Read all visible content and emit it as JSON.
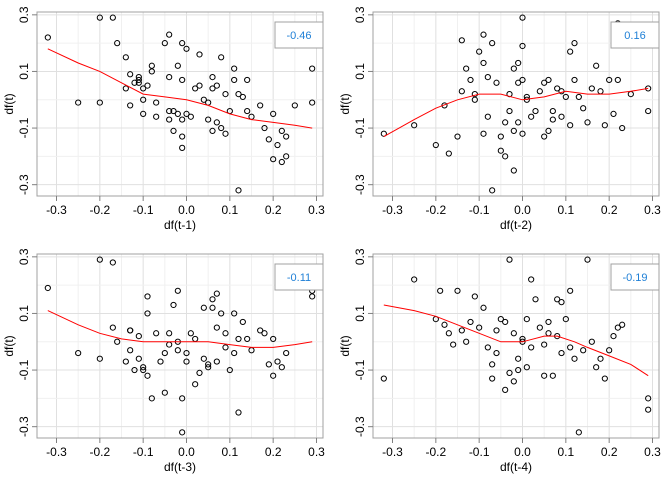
{
  "chart_data": [
    {
      "type": "scatter",
      "xlabel": "df(t-1)",
      "ylabel": "df(t)",
      "xlim": [
        -0.345,
        0.315
      ],
      "ylim": [
        -0.34,
        0.31
      ],
      "xticks": [
        "-0.3",
        "-0.2",
        "-0.1",
        "0.0",
        "0.1",
        "0.2",
        "0.3"
      ],
      "yticks": [
        "-0.3",
        "-0.1",
        "0.1",
        "0.3"
      ],
      "grid": true,
      "annotation": "-0.46",
      "annotation_color": "#1e7fd6",
      "point_color": "#000000",
      "smooth_color": "#ff0000",
      "points": [
        [
          -0.32,
          0.22
        ],
        [
          -0.25,
          -0.01
        ],
        [
          -0.2,
          0.29
        ],
        [
          -0.2,
          -0.01
        ],
        [
          -0.17,
          0.29
        ],
        [
          -0.16,
          0.2
        ],
        [
          -0.14,
          0.15
        ],
        [
          -0.14,
          0.04
        ],
        [
          -0.13,
          0.09
        ],
        [
          -0.13,
          -0.02
        ],
        [
          -0.12,
          0.06
        ],
        [
          -0.11,
          0.08
        ],
        [
          -0.11,
          0.06
        ],
        [
          -0.11,
          0.07
        ],
        [
          -0.1,
          0.04
        ],
        [
          -0.1,
          0.0
        ],
        [
          -0.1,
          -0.05
        ],
        [
          -0.09,
          0.05
        ],
        [
          -0.08,
          0.12
        ],
        [
          -0.08,
          0.1
        ],
        [
          -0.07,
          -0.01
        ],
        [
          -0.07,
          -0.06
        ],
        [
          -0.05,
          0.2
        ],
        [
          -0.04,
          0.23
        ],
        [
          -0.04,
          0.08
        ],
        [
          -0.04,
          -0.04
        ],
        [
          -0.04,
          -0.07
        ],
        [
          -0.03,
          -0.11
        ],
        [
          -0.03,
          -0.04
        ],
        [
          -0.02,
          0.12
        ],
        [
          -0.02,
          -0.05
        ],
        [
          -0.01,
          0.2
        ],
        [
          -0.01,
          0.07
        ],
        [
          -0.01,
          -0.07
        ],
        [
          -0.01,
          -0.13
        ],
        [
          -0.01,
          -0.17
        ],
        [
          0.0,
          0.18
        ],
        [
          0.0,
          -0.05
        ],
        [
          0.01,
          -0.06
        ],
        [
          0.02,
          0.04
        ],
        [
          0.03,
          0.16
        ],
        [
          0.03,
          0.05
        ],
        [
          0.04,
          0.0
        ],
        [
          0.05,
          -0.01
        ],
        [
          0.05,
          -0.07
        ],
        [
          0.06,
          -0.11
        ],
        [
          0.06,
          0.08
        ],
        [
          0.06,
          0.04
        ],
        [
          0.07,
          0.05
        ],
        [
          0.07,
          -0.08
        ],
        [
          0.08,
          0.15
        ],
        [
          0.08,
          -0.1
        ],
        [
          0.09,
          0.02
        ],
        [
          0.09,
          -0.12
        ],
        [
          0.1,
          -0.04
        ],
        [
          0.11,
          0.11
        ],
        [
          0.11,
          0.07
        ],
        [
          0.12,
          0.02
        ],
        [
          0.12,
          -0.32
        ],
        [
          0.13,
          0.01
        ],
        [
          0.14,
          0.07
        ],
        [
          0.14,
          -0.04
        ],
        [
          0.15,
          -0.06
        ],
        [
          0.17,
          -0.02
        ],
        [
          0.18,
          -0.1
        ],
        [
          0.19,
          -0.14
        ],
        [
          0.2,
          -0.21
        ],
        [
          0.2,
          -0.05
        ],
        [
          0.21,
          -0.16
        ],
        [
          0.22,
          -0.11
        ],
        [
          0.22,
          -0.22
        ],
        [
          0.23,
          -0.13
        ],
        [
          0.23,
          -0.2
        ],
        [
          0.25,
          -0.02
        ],
        [
          0.29,
          0.11
        ],
        [
          0.29,
          -0.01
        ]
      ],
      "smooth": [
        [
          -0.32,
          0.18
        ],
        [
          -0.25,
          0.13
        ],
        [
          -0.2,
          0.1
        ],
        [
          -0.15,
          0.06
        ],
        [
          -0.1,
          0.02
        ],
        [
          -0.05,
          0.01
        ],
        [
          0.0,
          0.0
        ],
        [
          0.05,
          -0.02
        ],
        [
          0.1,
          -0.05
        ],
        [
          0.15,
          -0.07
        ],
        [
          0.2,
          -0.08
        ],
        [
          0.25,
          -0.09
        ],
        [
          0.29,
          -0.1
        ]
      ]
    },
    {
      "type": "scatter",
      "xlabel": "df(t-2)",
      "ylabel": "df(t)",
      "xlim": [
        -0.345,
        0.315
      ],
      "ylim": [
        -0.34,
        0.31
      ],
      "xticks": [
        "-0.3",
        "-0.2",
        "-0.1",
        "0.0",
        "0.1",
        "0.2",
        "0.3"
      ],
      "yticks": [
        "-0.3",
        "-0.1",
        "0.1",
        "0.3"
      ],
      "grid": true,
      "annotation": "0.16",
      "annotation_color": "#1e7fd6",
      "point_color": "#000000",
      "smooth_color": "#ff0000",
      "points": [
        [
          -0.32,
          -0.12
        ],
        [
          -0.25,
          -0.09
        ],
        [
          -0.2,
          -0.16
        ],
        [
          -0.18,
          -0.02
        ],
        [
          -0.17,
          -0.19
        ],
        [
          -0.15,
          -0.13
        ],
        [
          -0.14,
          0.21
        ],
        [
          -0.14,
          0.03
        ],
        [
          -0.13,
          0.11
        ],
        [
          -0.12,
          0.07
        ],
        [
          -0.11,
          0.02
        ],
        [
          -0.11,
          0.0
        ],
        [
          -0.1,
          0.17
        ],
        [
          -0.09,
          0.23
        ],
        [
          -0.09,
          -0.12
        ],
        [
          -0.09,
          0.13
        ],
        [
          -0.08,
          0.08
        ],
        [
          -0.08,
          -0.06
        ],
        [
          -0.07,
          -0.32
        ],
        [
          -0.07,
          0.2
        ],
        [
          -0.06,
          0.06
        ],
        [
          -0.05,
          -0.18
        ],
        [
          -0.05,
          -0.13
        ],
        [
          -0.04,
          -0.2
        ],
        [
          -0.04,
          -0.08
        ],
        [
          -0.03,
          0.02
        ],
        [
          -0.03,
          -0.04
        ],
        [
          -0.02,
          0.11
        ],
        [
          -0.02,
          -0.11
        ],
        [
          -0.02,
          -0.25
        ],
        [
          -0.01,
          0.13
        ],
        [
          -0.01,
          0.06
        ],
        [
          -0.01,
          -0.08
        ],
        [
          0.0,
          0.29
        ],
        [
          0.0,
          0.19
        ],
        [
          0.0,
          0.07
        ],
        [
          0.0,
          -0.12
        ],
        [
          0.01,
          0.0
        ],
        [
          0.01,
          0.01
        ],
        [
          0.02,
          -0.06
        ],
        [
          0.03,
          -0.04
        ],
        [
          0.04,
          0.03
        ],
        [
          0.05,
          0.06
        ],
        [
          0.05,
          -0.13
        ],
        [
          0.06,
          -0.11
        ],
        [
          0.06,
          0.07
        ],
        [
          0.07,
          -0.04
        ],
        [
          0.07,
          -0.07
        ],
        [
          0.08,
          0.04
        ],
        [
          0.09,
          0.03
        ],
        [
          0.09,
          -0.06
        ],
        [
          0.1,
          0.01
        ],
        [
          0.11,
          0.17
        ],
        [
          0.11,
          -0.09
        ],
        [
          0.12,
          0.2
        ],
        [
          0.12,
          0.07
        ],
        [
          0.13,
          0.01
        ],
        [
          0.14,
          -0.03
        ],
        [
          0.15,
          -0.08
        ],
        [
          0.16,
          0.04
        ],
        [
          0.17,
          0.12
        ],
        [
          0.18,
          0.03
        ],
        [
          0.19,
          -0.09
        ],
        [
          0.2,
          0.07
        ],
        [
          0.21,
          -0.05
        ],
        [
          0.22,
          0.27
        ],
        [
          0.22,
          0.07
        ],
        [
          0.23,
          -0.1
        ],
        [
          0.25,
          0.02
        ],
        [
          0.29,
          -0.04
        ],
        [
          0.29,
          0.04
        ]
      ],
      "smooth": [
        [
          -0.32,
          -0.13
        ],
        [
          -0.25,
          -0.07
        ],
        [
          -0.2,
          -0.03
        ],
        [
          -0.15,
          0.0
        ],
        [
          -0.1,
          0.02
        ],
        [
          -0.05,
          0.02
        ],
        [
          0.0,
          0.0
        ],
        [
          0.05,
          0.01
        ],
        [
          0.1,
          0.03
        ],
        [
          0.15,
          0.02
        ],
        [
          0.2,
          0.02
        ],
        [
          0.25,
          0.03
        ],
        [
          0.29,
          0.04
        ]
      ]
    },
    {
      "type": "scatter",
      "xlabel": "df(t-3)",
      "ylabel": "df(t)",
      "xlim": [
        -0.345,
        0.315
      ],
      "ylim": [
        -0.34,
        0.31
      ],
      "xticks": [
        "-0.3",
        "-0.2",
        "-0.1",
        "0.0",
        "0.1",
        "0.2",
        "0.3"
      ],
      "yticks": [
        "-0.3",
        "-0.1",
        "0.1",
        "0.3"
      ],
      "grid": true,
      "annotation": "-0.11",
      "annotation_color": "#1e7fd6",
      "point_color": "#000000",
      "smooth_color": "#ff0000",
      "points": [
        [
          -0.32,
          0.19
        ],
        [
          -0.25,
          -0.04
        ],
        [
          -0.2,
          0.29
        ],
        [
          -0.2,
          -0.06
        ],
        [
          -0.17,
          0.28
        ],
        [
          -0.17,
          0.05
        ],
        [
          -0.16,
          0.0
        ],
        [
          -0.14,
          -0.07
        ],
        [
          -0.13,
          -0.03
        ],
        [
          -0.13,
          0.04
        ],
        [
          -0.13,
          0.04
        ],
        [
          -0.12,
          -0.1
        ],
        [
          -0.11,
          0.02
        ],
        [
          -0.11,
          -0.06
        ],
        [
          -0.1,
          -0.09
        ],
        [
          -0.1,
          -0.1
        ],
        [
          -0.09,
          0.1
        ],
        [
          -0.09,
          -0.12
        ],
        [
          -0.09,
          0.16
        ],
        [
          -0.08,
          -0.2
        ],
        [
          -0.07,
          0.03
        ],
        [
          -0.06,
          -0.07
        ],
        [
          -0.05,
          -0.18
        ],
        [
          -0.05,
          -0.04
        ],
        [
          -0.04,
          0.03
        ],
        [
          -0.04,
          -0.01
        ],
        [
          -0.03,
          0.13
        ],
        [
          -0.02,
          0.18
        ],
        [
          -0.02,
          0.0
        ],
        [
          -0.02,
          -0.03
        ],
        [
          -0.01,
          -0.2
        ],
        [
          -0.01,
          -0.32
        ],
        [
          0.0,
          -0.04
        ],
        [
          0.0,
          -0.07
        ],
        [
          0.01,
          0.03
        ],
        [
          0.02,
          -0.15
        ],
        [
          0.02,
          0.01
        ],
        [
          0.03,
          -0.11
        ],
        [
          0.04,
          0.12
        ],
        [
          0.04,
          -0.06
        ],
        [
          0.05,
          -0.09
        ],
        [
          0.05,
          -0.08
        ],
        [
          0.06,
          0.15
        ],
        [
          0.06,
          0.12
        ],
        [
          0.07,
          0.17
        ],
        [
          0.07,
          0.05
        ],
        [
          0.07,
          -0.07
        ],
        [
          0.08,
          0.1
        ],
        [
          0.09,
          -0.02
        ],
        [
          0.09,
          0.03
        ],
        [
          0.1,
          -0.1
        ],
        [
          0.11,
          0.1
        ],
        [
          0.11,
          -0.04
        ],
        [
          0.12,
          -0.25
        ],
        [
          0.12,
          0.01
        ],
        [
          0.13,
          0.07
        ],
        [
          0.14,
          0.01
        ],
        [
          0.15,
          -0.03
        ],
        [
          0.17,
          0.04
        ],
        [
          0.18,
          0.03
        ],
        [
          0.19,
          -0.08
        ],
        [
          0.2,
          0.01
        ],
        [
          0.2,
          -0.12
        ],
        [
          0.21,
          -0.07
        ],
        [
          0.22,
          -0.09
        ],
        [
          0.23,
          -0.04
        ],
        [
          0.29,
          0.16
        ],
        [
          0.29,
          0.18
        ]
      ],
      "smooth": [
        [
          -0.32,
          0.11
        ],
        [
          -0.25,
          0.06
        ],
        [
          -0.2,
          0.03
        ],
        [
          -0.15,
          0.01
        ],
        [
          -0.1,
          0.0
        ],
        [
          -0.05,
          0.0
        ],
        [
          0.0,
          0.0
        ],
        [
          0.05,
          0.0
        ],
        [
          0.1,
          -0.01
        ],
        [
          0.15,
          -0.02
        ],
        [
          0.2,
          -0.02
        ],
        [
          0.25,
          -0.01
        ],
        [
          0.29,
          0.0
        ]
      ]
    },
    {
      "type": "scatter",
      "xlabel": "df(t-4)",
      "ylabel": "df(t)",
      "xlim": [
        -0.345,
        0.315
      ],
      "ylim": [
        -0.34,
        0.31
      ],
      "xticks": [
        "-0.3",
        "-0.2",
        "-0.1",
        "0.0",
        "0.1",
        "0.2",
        "0.3"
      ],
      "yticks": [
        "-0.3",
        "-0.1",
        "0.1",
        "0.3"
      ],
      "grid": true,
      "annotation": "-0.19",
      "annotation_color": "#1e7fd6",
      "point_color": "#000000",
      "smooth_color": "#ff0000",
      "points": [
        [
          -0.32,
          -0.13
        ],
        [
          -0.25,
          0.22
        ],
        [
          -0.2,
          0.08
        ],
        [
          -0.19,
          0.18
        ],
        [
          -0.18,
          0.06
        ],
        [
          -0.17,
          0.03
        ],
        [
          -0.16,
          -0.01
        ],
        [
          -0.15,
          0.18
        ],
        [
          -0.14,
          0.04
        ],
        [
          -0.13,
          0.0
        ],
        [
          -0.12,
          0.07
        ],
        [
          -0.11,
          0.16
        ],
        [
          -0.1,
          0.05
        ],
        [
          -0.09,
          0.12
        ],
        [
          -0.08,
          -0.02
        ],
        [
          -0.07,
          -0.13
        ],
        [
          -0.07,
          -0.08
        ],
        [
          -0.06,
          0.04
        ],
        [
          -0.06,
          -0.04
        ],
        [
          -0.05,
          0.08
        ],
        [
          -0.04,
          0.07
        ],
        [
          -0.04,
          -0.17
        ],
        [
          -0.03,
          0.29
        ],
        [
          -0.03,
          -0.11
        ],
        [
          -0.02,
          0.03
        ],
        [
          -0.02,
          -0.14
        ],
        [
          -0.01,
          -0.1
        ],
        [
          -0.01,
          -0.06
        ],
        [
          0.0,
          0.0
        ],
        [
          0.0,
          0.01
        ],
        [
          0.01,
          0.08
        ],
        [
          0.01,
          -0.09
        ],
        [
          0.02,
          0.22
        ],
        [
          0.02,
          -0.02
        ],
        [
          0.03,
          0.15
        ],
        [
          0.04,
          0.05
        ],
        [
          0.05,
          -0.01
        ],
        [
          0.05,
          -0.12
        ],
        [
          0.06,
          0.07
        ],
        [
          0.06,
          0.03
        ],
        [
          0.07,
          -0.12
        ],
        [
          0.08,
          0.02
        ],
        [
          0.08,
          0.15
        ],
        [
          0.09,
          0.14
        ],
        [
          0.09,
          -0.04
        ],
        [
          0.1,
          0.08
        ],
        [
          0.11,
          0.18
        ],
        [
          0.11,
          -0.02
        ],
        [
          0.12,
          -0.06
        ],
        [
          0.13,
          -0.32
        ],
        [
          0.14,
          -0.03
        ],
        [
          0.15,
          0.29
        ],
        [
          0.16,
          0.0
        ],
        [
          0.17,
          -0.09
        ],
        [
          0.18,
          -0.06
        ],
        [
          0.19,
          -0.13
        ],
        [
          0.2,
          -0.03
        ],
        [
          0.21,
          0.02
        ],
        [
          0.22,
          0.05
        ],
        [
          0.23,
          0.06
        ],
        [
          0.29,
          -0.2
        ],
        [
          0.29,
          -0.24
        ]
      ],
      "smooth": [
        [
          -0.32,
          0.13
        ],
        [
          -0.25,
          0.11
        ],
        [
          -0.2,
          0.09
        ],
        [
          -0.15,
          0.06
        ],
        [
          -0.1,
          0.03
        ],
        [
          -0.05,
          0.0
        ],
        [
          0.0,
          0.0
        ],
        [
          0.05,
          0.02
        ],
        [
          0.08,
          0.02
        ],
        [
          0.12,
          0.0
        ],
        [
          0.15,
          -0.02
        ],
        [
          0.2,
          -0.05
        ],
        [
          0.25,
          -0.08
        ],
        [
          0.29,
          -0.12
        ]
      ]
    }
  ]
}
